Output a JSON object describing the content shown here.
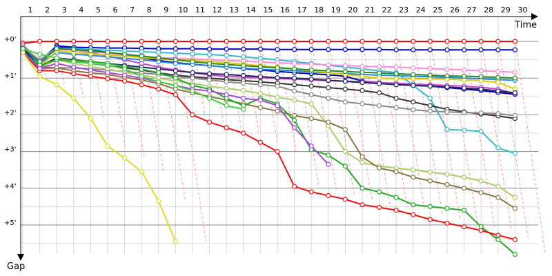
{
  "chart_data": {
    "type": "line",
    "xlabel": "Time",
    "ylabel": "Gap",
    "laps": [
      1,
      2,
      3,
      4,
      5,
      6,
      7,
      8,
      9,
      10,
      11,
      12,
      13,
      14,
      15,
      16,
      17,
      18,
      19,
      20,
      21,
      22,
      23,
      24,
      25,
      26,
      27,
      28,
      29,
      30
    ],
    "gap_ticks": [
      "+0'",
      "+1'",
      "+2'",
      "+3'",
      "+4'",
      "+5'"
    ],
    "ylim": [
      0,
      5.6
    ],
    "grid": true,
    "series": [
      {
        "color": "#ff0000",
        "values": [
          0.05,
          0,
          0,
          0,
          0,
          0,
          0,
          0,
          0,
          0,
          0,
          0,
          0,
          0,
          0,
          0,
          0,
          0,
          0,
          0,
          0,
          0,
          0,
          0,
          0,
          0,
          0,
          0,
          0,
          0
        ]
      },
      {
        "color": "#0000cc",
        "values": [
          0.1,
          0.55,
          0.12,
          0.16,
          0.17,
          0.18,
          0.18,
          0.19,
          0.2,
          0.2,
          0.2,
          0.21,
          0.21,
          0.21,
          0.21,
          0.22,
          0.22,
          0.22,
          0.22,
          0.22,
          0.22,
          0.22,
          0.23,
          0.23,
          0.23,
          0.23,
          0.23,
          0.23,
          0.23,
          0.23
        ]
      },
      {
        "color": "#0000aa",
        "values": [
          0.12,
          0.6,
          0.15,
          0.2,
          0.24,
          0.3,
          0.37,
          0.44,
          0.52,
          0.58,
          0.62,
          0.66,
          0.7,
          0.74,
          0.78,
          0.82,
          0.85,
          0.88,
          0.91,
          0.95,
          1.08,
          1.12,
          1.16,
          1.19,
          1.22,
          1.26,
          1.3,
          1.34,
          1.39,
          1.44
        ]
      },
      {
        "color": "#cc44cc",
        "values": [
          0.1,
          0.58,
          0.2,
          0.24,
          0.3,
          0.4,
          0.5,
          0.6,
          0.7,
          0.78,
          0.85,
          0.92,
          0.95,
          0.97,
          0.99,
          1.01,
          1.03,
          1.05,
          1.07,
          1.08,
          1.1,
          1.12,
          1.14,
          1.16,
          1.18,
          1.2,
          1.22,
          1.25,
          1.3,
          1.42
        ]
      },
      {
        "color": "#2288dd",
        "values": [
          0.2,
          0.6,
          0.3,
          0.35,
          0.38,
          0.42,
          0.46,
          0.5,
          0.55,
          0.6,
          0.63,
          0.66,
          0.7,
          0.73,
          0.76,
          0.78,
          0.8,
          0.83,
          0.86,
          0.88,
          0.9,
          0.92,
          0.93,
          0.95,
          0.96,
          0.98,
          1.0,
          1.02,
          1.04,
          1.06
        ]
      },
      {
        "color": "#33bbcc",
        "values": [
          0.15,
          0.5,
          0.18,
          0.2,
          0.22,
          0.24,
          0.26,
          0.28,
          0.3,
          0.32,
          0.34,
          0.36,
          0.38,
          0.42,
          0.46,
          0.5,
          0.55,
          0.6,
          0.65,
          0.7,
          0.75,
          0.8,
          0.85,
          1.2,
          1.55,
          2.4,
          2.42,
          2.45,
          2.9,
          3.05
        ]
      },
      {
        "color": "#ff88dd",
        "values": [
          0.15,
          0.52,
          0.2,
          0.24,
          0.28,
          0.32,
          0.36,
          0.4,
          0.44,
          0.46,
          0.48,
          0.5,
          0.52,
          0.54,
          0.56,
          0.58,
          0.6,
          0.62,
          0.64,
          0.66,
          0.68,
          0.69,
          0.7,
          0.72,
          0.74,
          0.76,
          0.78,
          0.8,
          0.82,
          0.84
        ]
      },
      {
        "color": "#ddcc00",
        "values": [
          0.2,
          0.7,
          0.25,
          0.3,
          0.34,
          0.37,
          0.4,
          0.44,
          0.47,
          0.5,
          0.52,
          0.55,
          0.58,
          0.62,
          0.66,
          0.7,
          0.75,
          0.8,
          0.85,
          0.9,
          0.95,
          1.0,
          1.02,
          1.02,
          1.02,
          1.03,
          1.05,
          1.07,
          1.12,
          1.3
        ]
      },
      {
        "color": "#228822",
        "values": [
          0.18,
          0.55,
          0.2,
          0.22,
          0.26,
          0.3,
          0.35,
          0.4,
          0.45,
          0.5,
          0.55,
          0.6,
          0.63,
          0.66,
          0.69,
          0.72,
          0.75,
          0.78,
          0.8,
          0.82,
          0.84,
          0.86,
          0.88,
          0.9,
          0.92,
          0.94,
          0.95,
          0.96,
          0.98,
          1.0
        ]
      },
      {
        "color": "#333333",
        "values": [
          0.22,
          0.72,
          0.5,
          0.55,
          0.6,
          0.66,
          0.72,
          0.78,
          0.86,
          0.92,
          0.96,
          1.0,
          1.04,
          1.07,
          1.1,
          1.14,
          1.18,
          1.22,
          1.26,
          1.3,
          1.34,
          1.4,
          1.55,
          1.65,
          1.75,
          1.85,
          1.92,
          1.98,
          2.03,
          2.1
        ]
      },
      {
        "color": "#222266",
        "values": [
          0.2,
          0.68,
          0.45,
          0.5,
          0.55,
          0.6,
          0.65,
          0.7,
          0.75,
          0.8,
          0.85,
          0.88,
          0.9,
          0.93,
          0.96,
          0.99,
          1.0,
          1.03,
          1.06,
          1.09,
          1.12,
          1.15,
          1.18,
          1.2,
          1.22,
          1.24,
          1.27,
          1.3,
          1.35,
          1.4
        ]
      },
      {
        "color": "#888888",
        "values": [
          0.25,
          0.75,
          0.72,
          0.72,
          0.75,
          0.78,
          0.82,
          0.86,
          0.9,
          0.95,
          1.0,
          1.05,
          1.1,
          1.14,
          1.18,
          1.22,
          1.35,
          1.45,
          1.55,
          1.65,
          1.7,
          1.75,
          1.8,
          1.86,
          1.9,
          1.92,
          1.94,
          1.95,
          1.97,
          2.02
        ]
      },
      {
        "color": "#aacc66",
        "values": [
          0.3,
          0.72,
          0.5,
          0.6,
          0.68,
          0.76,
          0.84,
          0.92,
          1.0,
          1.08,
          1.15,
          1.22,
          1.28,
          1.34,
          1.42,
          1.52,
          1.6,
          1.7,
          2.3,
          3.0,
          3.3,
          3.4,
          3.45,
          3.5,
          3.56,
          3.62,
          3.7,
          3.8,
          3.95,
          4.25
        ]
      },
      {
        "color": "#887744",
        "values": [
          0.28,
          0.7,
          0.72,
          0.8,
          0.86,
          0.9,
          0.98,
          1.05,
          1.15,
          1.3,
          1.4,
          1.5,
          1.6,
          1.7,
          1.8,
          1.9,
          2.02,
          2.1,
          2.2,
          2.4,
          3.15,
          3.45,
          3.55,
          3.7,
          3.8,
          3.9,
          4.0,
          4.12,
          4.25,
          4.55
        ]
      },
      {
        "color": "#22aa22",
        "values": [
          0.3,
          0.65,
          0.5,
          0.52,
          0.55,
          0.6,
          0.68,
          0.76,
          0.85,
          1.0,
          1.2,
          1.3,
          1.55,
          1.75,
          1.55,
          1.7,
          2.15,
          2.95,
          3.1,
          3.4,
          4.0,
          4.1,
          4.25,
          4.45,
          4.5,
          4.55,
          4.6,
          5.05,
          5.4,
          5.8
        ]
      },
      {
        "color": "#ee1111",
        "values": [
          0.3,
          0.8,
          0.8,
          0.88,
          0.95,
          1.02,
          1.08,
          1.18,
          1.3,
          1.45,
          2.0,
          2.2,
          2.35,
          2.5,
          2.75,
          3.0,
          3.95,
          4.1,
          4.2,
          4.3,
          4.45,
          4.52,
          4.6,
          4.72,
          4.85,
          4.95,
          5.05,
          5.15,
          5.28,
          5.4
        ]
      },
      {
        "color": "#aa44dd",
        "values": [
          0.28,
          0.74,
          0.6,
          0.7,
          0.78,
          0.85,
          0.92,
          1.0,
          1.1,
          1.2,
          1.3,
          1.35,
          1.45,
          1.55,
          1.6,
          1.75,
          2.35,
          2.85,
          3.35,
          null,
          null,
          null,
          null,
          null,
          null,
          null,
          null,
          null,
          null,
          null
        ]
      },
      {
        "color": "#dddd22",
        "values": [
          0.3,
          0.95,
          1.18,
          1.55,
          2.1,
          2.85,
          3.18,
          3.55,
          4.35,
          5.45,
          null,
          null,
          null,
          null,
          null,
          null,
          null,
          null,
          null,
          null,
          null,
          null,
          null,
          null,
          null,
          null,
          null,
          null,
          null,
          null
        ]
      },
      {
        "color": "#44cc44",
        "values": [
          0.2,
          0.35,
          0.45,
          0.55,
          0.6,
          0.65,
          0.75,
          0.95,
          1.1,
          1.2,
          1.35,
          1.55,
          1.75,
          1.85,
          null,
          null,
          null,
          null,
          null,
          null,
          null,
          null,
          null,
          null,
          null,
          null,
          null,
          null,
          null,
          null
        ]
      }
    ]
  }
}
